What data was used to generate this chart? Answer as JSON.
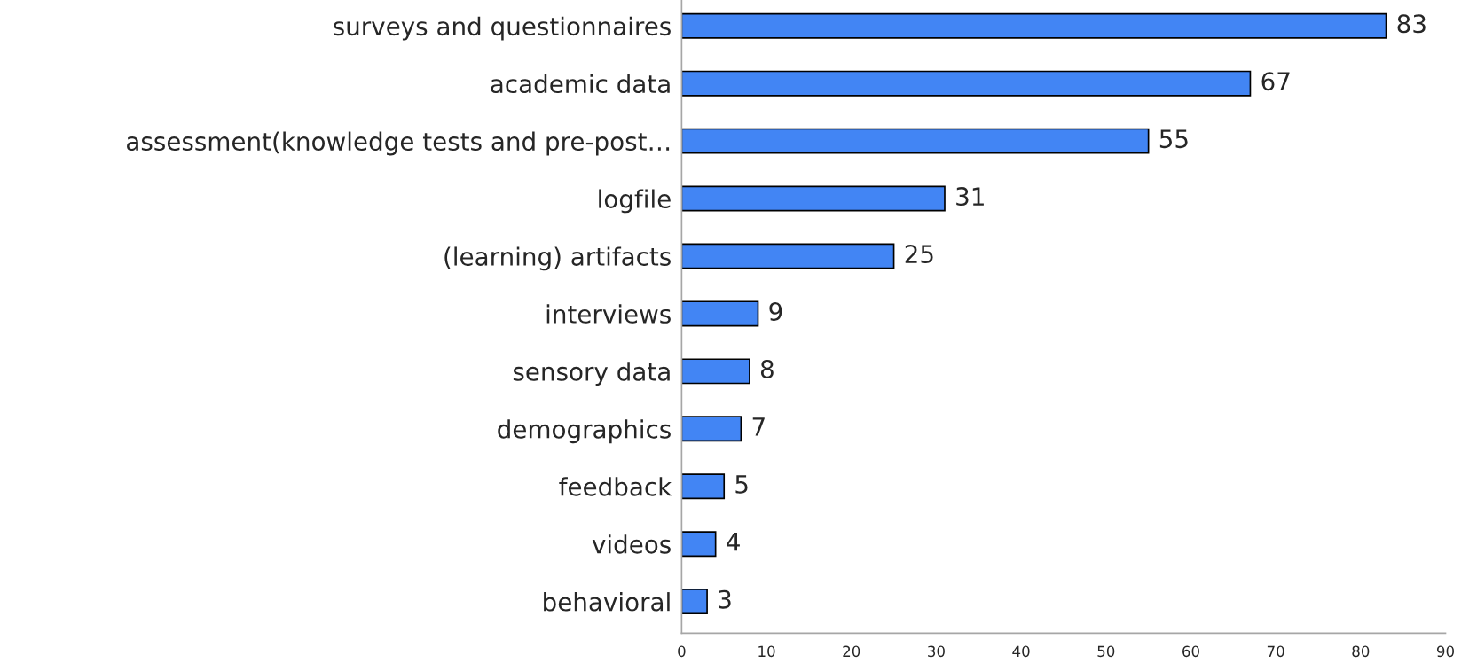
{
  "chart_data": {
    "type": "bar",
    "orientation": "horizontal",
    "categories": [
      "surveys and questionnaires",
      "academic data",
      "assessment(knowledge tests and pre-post…",
      "logfile",
      "(learning) artifacts",
      "interviews",
      "sensory data",
      "demographics",
      "feedback",
      "videos",
      "behavioral"
    ],
    "values": [
      83,
      67,
      55,
      31,
      25,
      9,
      8,
      7,
      5,
      4,
      3
    ],
    "color": "#4285f4",
    "xlim": [
      0,
      90
    ],
    "xticks": [
      0,
      10,
      20,
      30,
      40,
      50,
      60,
      70,
      80,
      90
    ],
    "data_labels": true,
    "grid": false
  }
}
